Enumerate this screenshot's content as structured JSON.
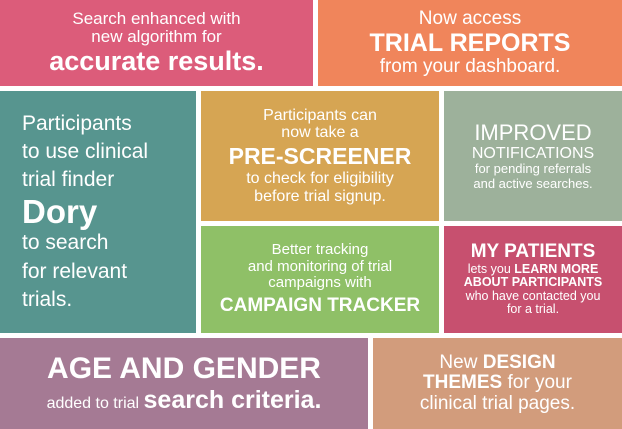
{
  "tiles": {
    "algorithm": {
      "line1": "Search enhanced with",
      "line2": "new algorithm for",
      "line3": "accurate results."
    },
    "trial_reports": {
      "line1": "Now access",
      "line2": "TRIAL REPORTS",
      "line3": "from your dashboard."
    },
    "dory": {
      "line1": "Participants",
      "line2": "to use clinical",
      "line3": "trial finder",
      "line4": "Dory",
      "line5": "to search",
      "line6": "for relevant",
      "line7": "trials."
    },
    "pre_screener": {
      "line1": "Participants can",
      "line2": "now take a",
      "line3": "PRE-SCREENER",
      "line4": "to check for eligibility",
      "line5": "before trial signup."
    },
    "notifications": {
      "line1": "IMPROVED",
      "line2": "NOTIFICATIONS",
      "line3": "for pending referrals",
      "line4": "and active searches."
    },
    "campaign_tracker": {
      "line1": "Better tracking",
      "line2": "and monitoring of trial",
      "line3": "campaigns with",
      "line4": "CAMPAIGN TRACKER"
    },
    "my_patients": {
      "line1": "MY PATIENTS",
      "line2a": "lets you ",
      "line2b": "LEARN MORE",
      "line3": "ABOUT PARTICIPANTS",
      "line4": "who have contacted you",
      "line5": "for a trial."
    },
    "age_gender": {
      "line1": "AGE AND GENDER",
      "line2a": "added to trial ",
      "line2b": "search criteria."
    },
    "design_themes": {
      "line1a": "New ",
      "line1b": "DESIGN",
      "line2a": "THEMES",
      "line2b": " for your",
      "line3": "clinical trial pages."
    }
  },
  "colors": {
    "pink": "#dc5c7a",
    "orange": "#f0855b",
    "teal": "#57958f",
    "mustard": "#d6a553",
    "sage": "#9db19b",
    "green": "#8fc067",
    "magenta": "#c7506f",
    "mauve": "#a57a94",
    "tan": "#d29c7c"
  }
}
